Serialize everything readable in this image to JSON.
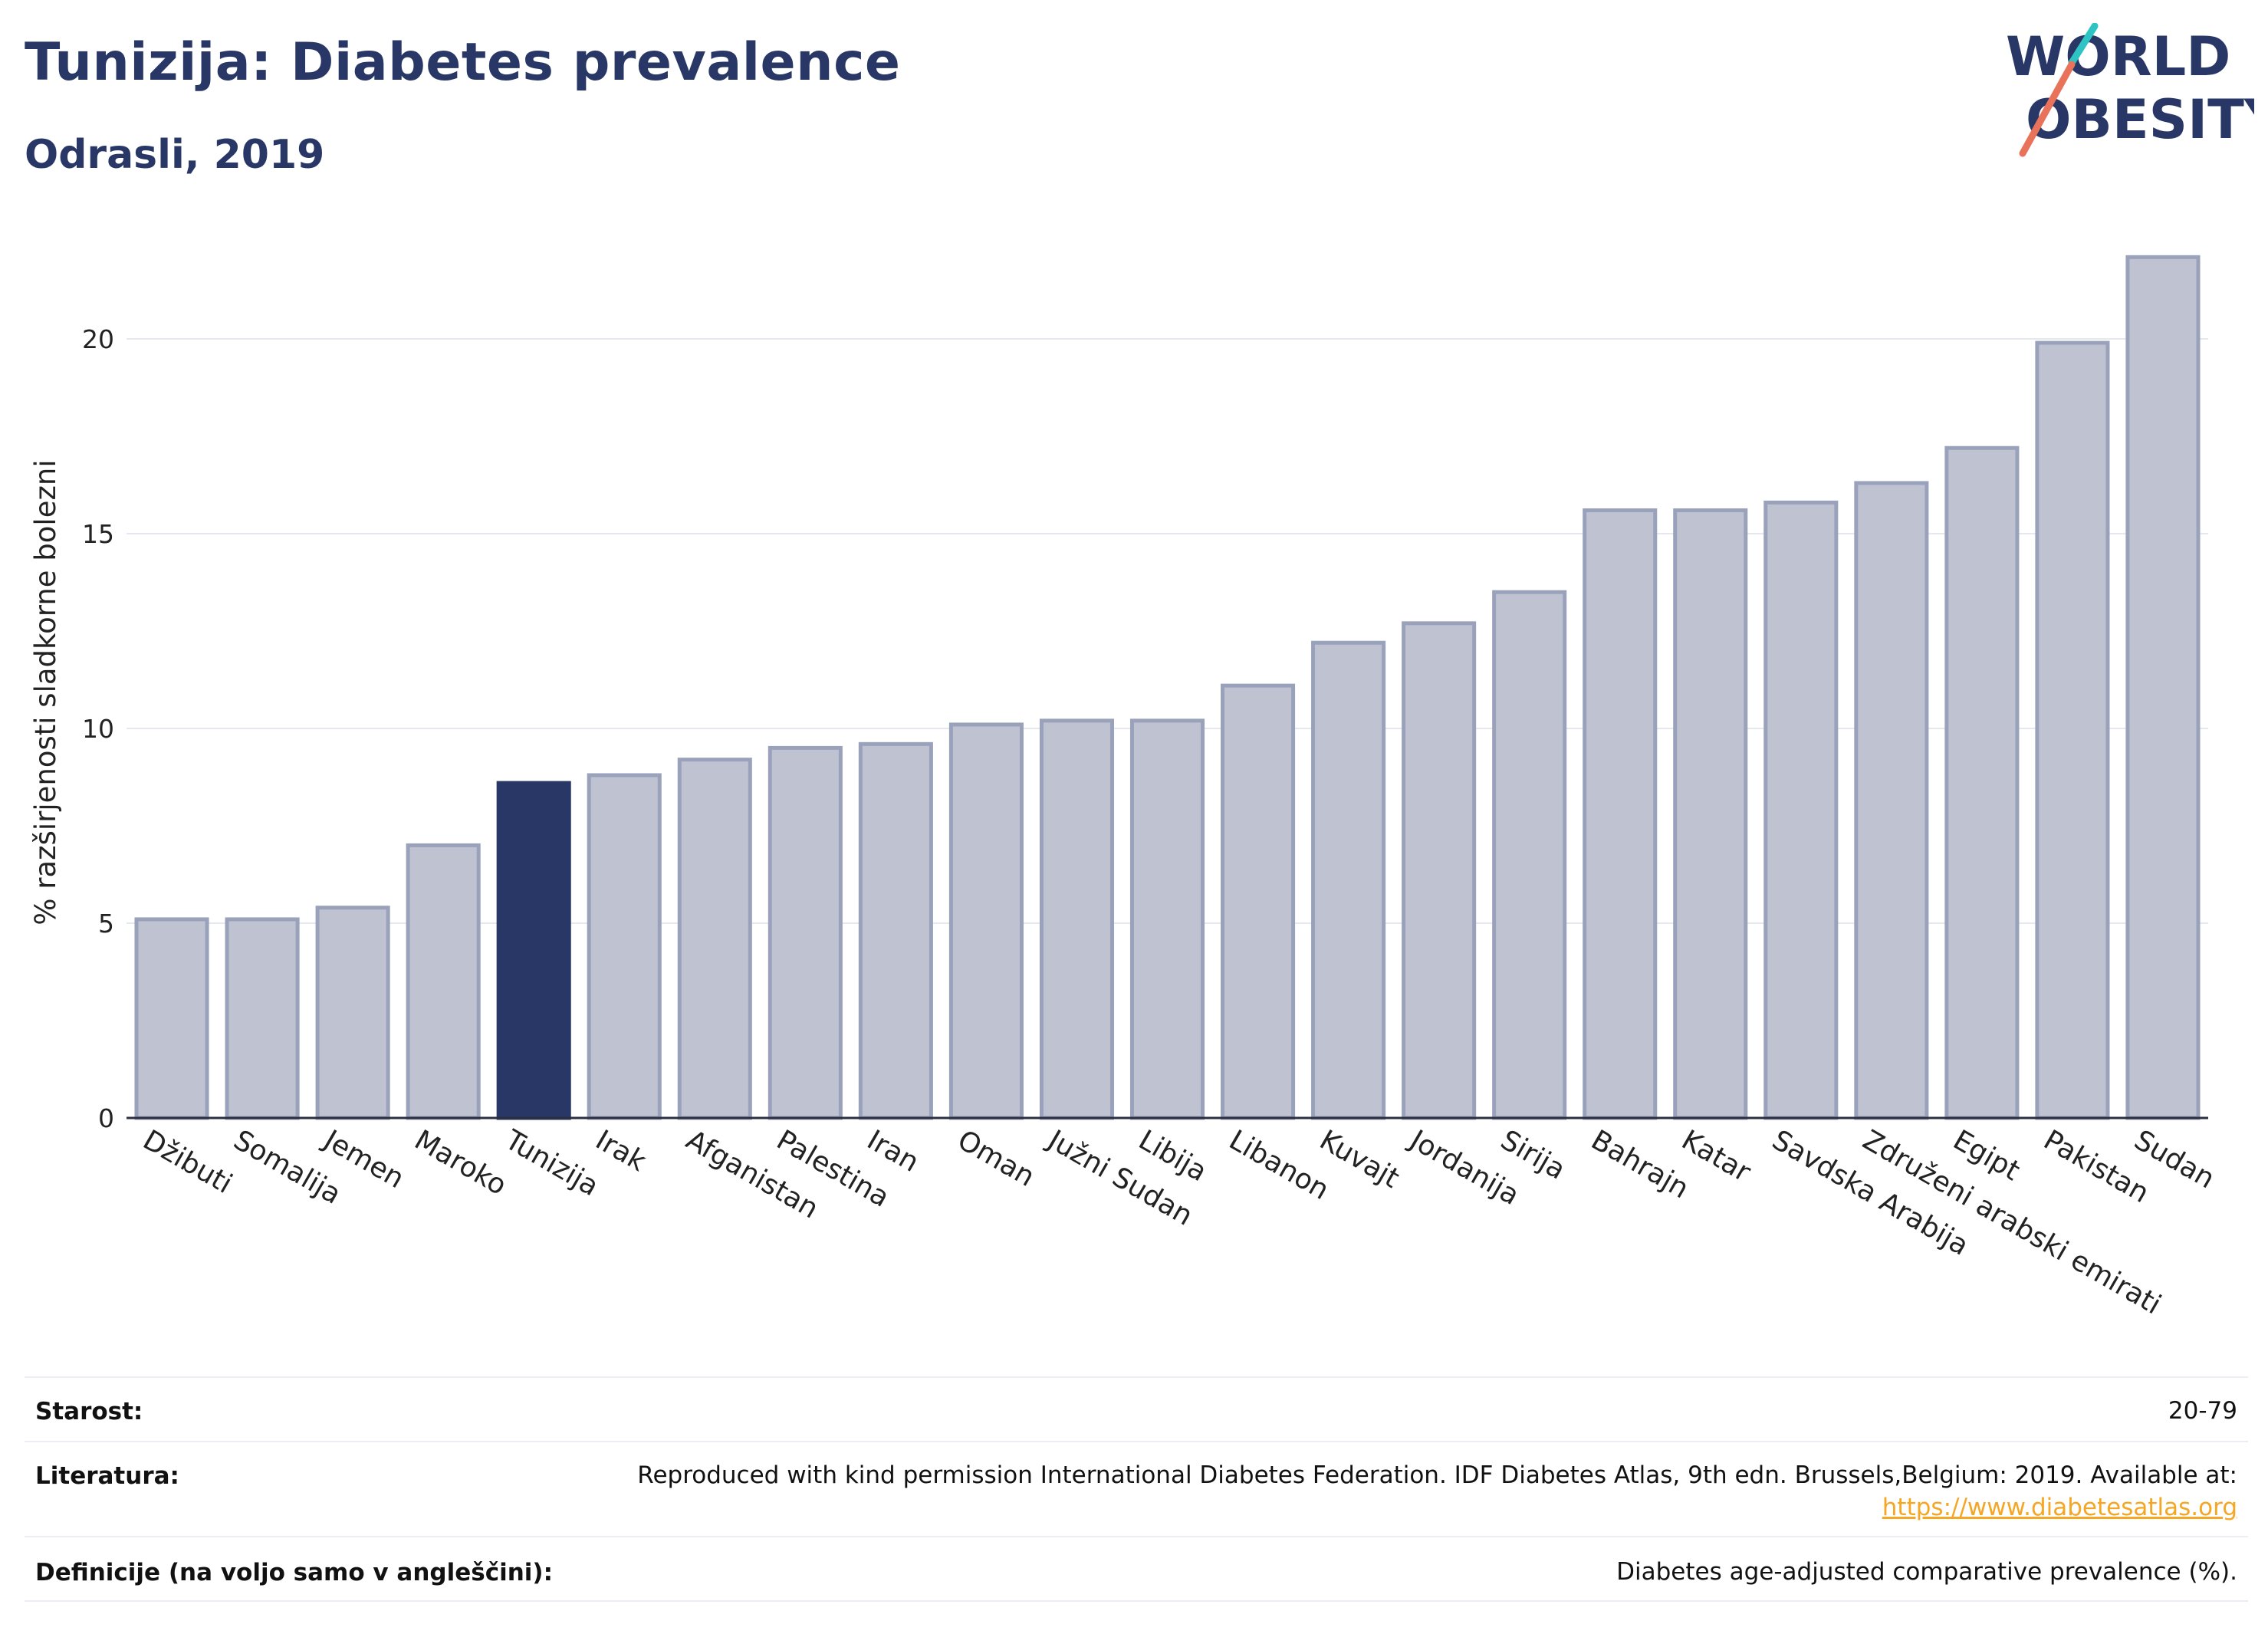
{
  "header": {
    "title": "Tunizija: Diabetes prevalence",
    "subtitle": "Odrasli, 2019"
  },
  "logo": {
    "line1": "WORLD",
    "line2": "OBESITY",
    "accent_colors": [
      "#2ec4c4",
      "#e8735a"
    ]
  },
  "colors": {
    "bar": "#bfc3d1",
    "bar_border": "#9aa2bb",
    "highlight": "#283766",
    "title": "#283766",
    "link": "#f5a623"
  },
  "chart_data": {
    "type": "bar",
    "ylabel": "% razširjenosti sladkorne bolezni",
    "xlabel": "",
    "ylim": [
      0,
      22.5
    ],
    "yticks": [
      0,
      5,
      10,
      15,
      20
    ],
    "grid": true,
    "highlight_category": "Tunizija",
    "categories": [
      "Džibuti",
      "Somalija",
      "Jemen",
      "Maroko",
      "Tunizija",
      "Irak",
      "Afganistan",
      "Palestina",
      "Iran",
      "Oman",
      "Južni Sudan",
      "Libija",
      "Libanon",
      "Kuvajt",
      "Jordanija",
      "Sirija",
      "Bahrajn",
      "Katar",
      "Savdska Arabija",
      "Združeni arabski emirati",
      "Egipt",
      "Pakistan",
      "Sudan"
    ],
    "values": [
      5.1,
      5.1,
      5.4,
      7.0,
      8.6,
      8.8,
      9.2,
      9.5,
      9.6,
      10.1,
      10.2,
      10.2,
      11.1,
      12.2,
      12.7,
      13.5,
      15.6,
      15.6,
      15.8,
      16.3,
      17.2,
      19.9,
      22.1
    ]
  },
  "footer": {
    "age_label": "Starost:",
    "age_value": "20-79",
    "source_label": "Literatura:",
    "source_text": "Reproduced with kind permission International Diabetes Federation. IDF Diabetes Atlas, 9th edn. Brussels,Belgium: 2019. Available at:",
    "source_link": "https://www.diabetesatlas.org",
    "definition_label": "Definicije (na voljo samo v angleščini):",
    "definition_value": "Diabetes age-adjusted comparative prevalence (%)."
  }
}
